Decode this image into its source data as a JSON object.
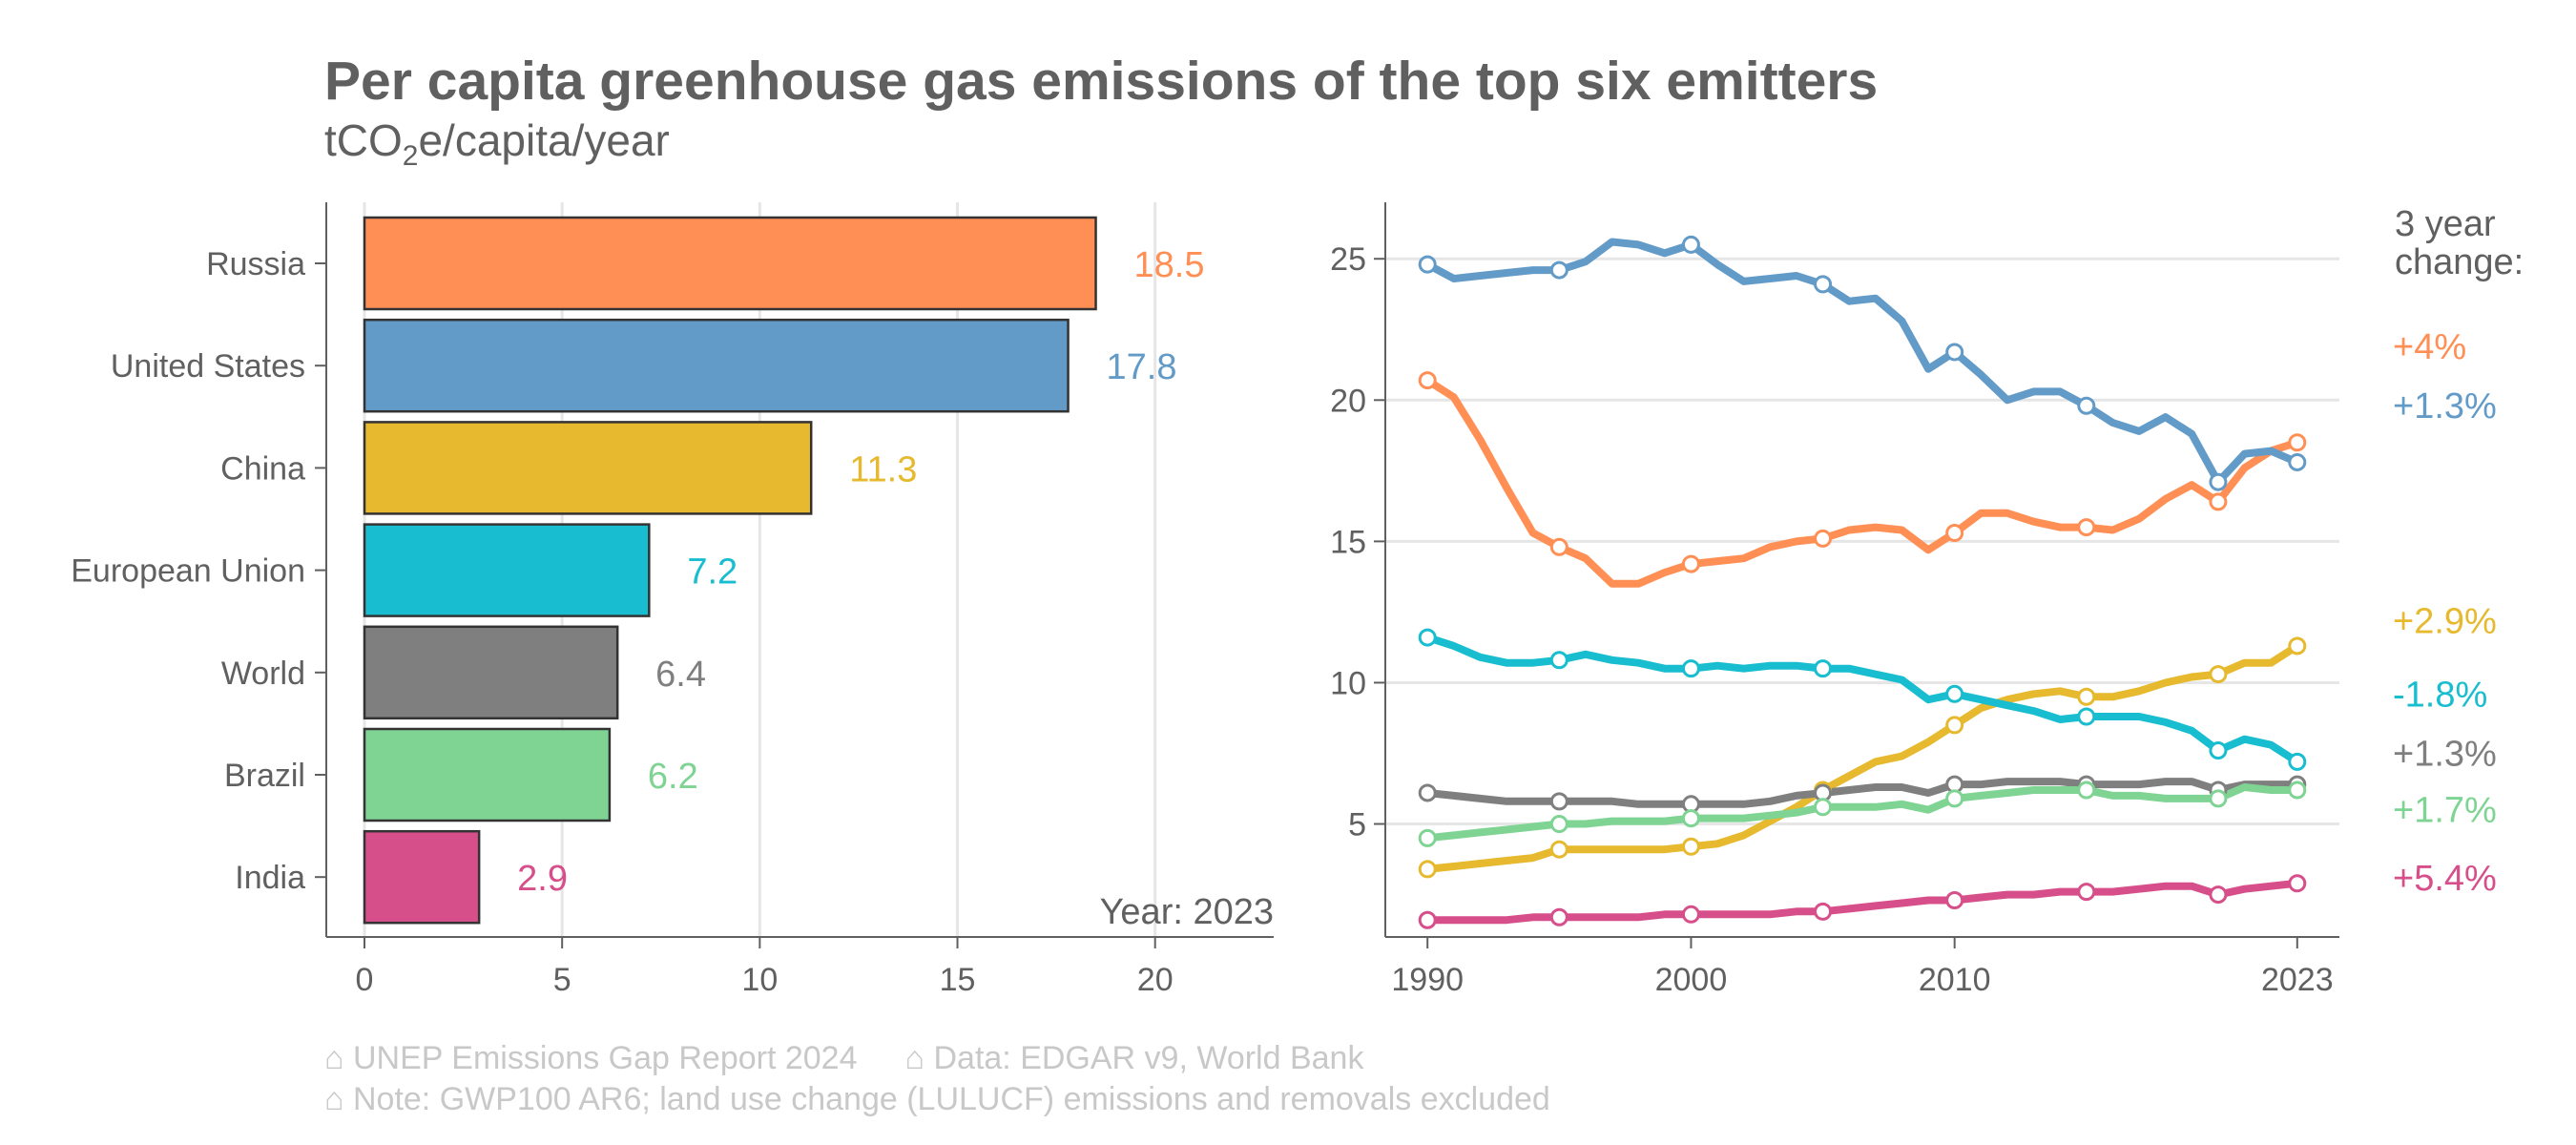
{
  "title": "Per capita greenhouse gas emissions of the top six emitters",
  "subtitle": {
    "prefix": "tCO",
    "sub": "2",
    "suffix": "e/capita/year"
  },
  "footer": {
    "source": "⌂ UNEP Emissions Gap Report 2024",
    "data": "⌂ Data: EDGAR v9, World Bank",
    "note": "⌂ Note: GWP100 AR6; land use change (LULUCF) emissions and removals excluded"
  },
  "colors": {
    "Russia": "#ff8f55",
    "United States": "#639bc8",
    "China": "#e6b92e",
    "European Union": "#19bdd0",
    "World": "#7f7f7f",
    "Brazil": "#7fd494",
    "India": "#d74f8a",
    "axis": "#606060",
    "grid": "#e6e6e6"
  },
  "chart_data": [
    {
      "type": "bar",
      "orientation": "horizontal",
      "categories": [
        "Russia",
        "United States",
        "China",
        "European Union",
        "World",
        "Brazil",
        "India"
      ],
      "values": [
        18.5,
        17.8,
        11.3,
        7.2,
        6.4,
        6.2,
        2.9
      ],
      "value_labels": [
        "18.5",
        "17.8",
        "11.3",
        "7.2",
        "6.4",
        "6.2",
        "2.9"
      ],
      "xlim": [
        0,
        23
      ],
      "xticks": [
        0,
        5,
        10,
        15,
        20
      ],
      "xtick_labels": [
        "0",
        "5",
        "10",
        "15",
        "20"
      ],
      "annotation": "Year: 2023"
    },
    {
      "type": "line",
      "x": [
        1990,
        1991,
        1992,
        1993,
        1994,
        1995,
        1996,
        1997,
        1998,
        1999,
        2000,
        2001,
        2002,
        2003,
        2004,
        2005,
        2006,
        2007,
        2008,
        2009,
        2010,
        2011,
        2012,
        2013,
        2014,
        2015,
        2016,
        2017,
        2018,
        2019,
        2020,
        2021,
        2022,
        2023
      ],
      "xlim": [
        1988.4,
        2024.6
      ],
      "ylim": [
        1.0,
        27.0
      ],
      "xticks": [
        1990,
        2000,
        2010,
        2023
      ],
      "xtick_labels": [
        "1990",
        "2000",
        "2010",
        "2023"
      ],
      "yticks": [
        5,
        10,
        15,
        20,
        25
      ],
      "ytick_labels": [
        "5",
        "10",
        "15",
        "20",
        "25"
      ],
      "marker_years": [
        1990,
        1995,
        2000,
        2005,
        2010,
        2015,
        2020,
        2023
      ],
      "legend_title": [
        "3 year",
        "change:"
      ],
      "series": [
        {
          "name": "Russia",
          "change": "+4%",
          "values": [
            20.7,
            20.1,
            18.6,
            16.9,
            15.3,
            14.8,
            14.4,
            13.5,
            13.5,
            13.9,
            14.2,
            14.3,
            14.4,
            14.8,
            15.0,
            15.1,
            15.4,
            15.5,
            15.4,
            14.7,
            15.3,
            16.0,
            16.0,
            15.7,
            15.5,
            15.5,
            15.4,
            15.8,
            16.5,
            17.0,
            16.4,
            17.6,
            18.2,
            18.5
          ],
          "label_y": 21.9
        },
        {
          "name": "United States",
          "change": "+1.3%",
          "values": [
            24.8,
            24.3,
            24.4,
            24.5,
            24.6,
            24.6,
            24.9,
            25.6,
            25.5,
            25.2,
            25.5,
            24.8,
            24.2,
            24.3,
            24.4,
            24.1,
            23.5,
            23.6,
            22.8,
            21.1,
            21.7,
            20.9,
            20.0,
            20.3,
            20.3,
            19.8,
            19.2,
            18.9,
            19.4,
            18.8,
            17.1,
            18.1,
            18.2,
            17.8
          ],
          "label_y": 19.8
        },
        {
          "name": "China",
          "change": "+2.9%",
          "values": [
            3.4,
            3.5,
            3.6,
            3.7,
            3.8,
            4.1,
            4.1,
            4.1,
            4.1,
            4.1,
            4.2,
            4.3,
            4.6,
            5.1,
            5.6,
            6.2,
            6.7,
            7.2,
            7.4,
            7.9,
            8.5,
            9.1,
            9.4,
            9.6,
            9.7,
            9.5,
            9.5,
            9.7,
            10.0,
            10.2,
            10.3,
            10.7,
            10.7,
            11.3
          ],
          "label_y": 12.2
        },
        {
          "name": "European Union",
          "change": "-1.8%",
          "values": [
            11.6,
            11.3,
            10.9,
            10.7,
            10.7,
            10.8,
            11.0,
            10.8,
            10.7,
            10.5,
            10.5,
            10.6,
            10.5,
            10.6,
            10.6,
            10.5,
            10.5,
            10.3,
            10.1,
            9.4,
            9.6,
            9.4,
            9.2,
            9.0,
            8.7,
            8.8,
            8.8,
            8.8,
            8.6,
            8.3,
            7.6,
            8.0,
            7.8,
            7.2
          ],
          "label_y": 9.6
        },
        {
          "name": "World",
          "change": "+1.3%",
          "values": [
            6.1,
            6.0,
            5.9,
            5.8,
            5.8,
            5.8,
            5.8,
            5.8,
            5.7,
            5.7,
            5.7,
            5.7,
            5.7,
            5.8,
            6.0,
            6.1,
            6.2,
            6.3,
            6.3,
            6.1,
            6.4,
            6.4,
            6.5,
            6.5,
            6.5,
            6.4,
            6.4,
            6.4,
            6.5,
            6.5,
            6.2,
            6.4,
            6.4,
            6.4
          ],
          "label_y": 7.5
        },
        {
          "name": "Brazil",
          "change": "+1.7%",
          "values": [
            4.5,
            4.6,
            4.7,
            4.8,
            4.9,
            5.0,
            5.0,
            5.1,
            5.1,
            5.1,
            5.2,
            5.2,
            5.2,
            5.3,
            5.4,
            5.6,
            5.6,
            5.6,
            5.7,
            5.5,
            5.9,
            6.0,
            6.1,
            6.2,
            6.2,
            6.2,
            6.0,
            6.0,
            5.9,
            5.9,
            5.9,
            6.3,
            6.2,
            6.2
          ],
          "label_y": 5.5
        },
        {
          "name": "India",
          "change": "+5.4%",
          "values": [
            1.6,
            1.6,
            1.6,
            1.6,
            1.7,
            1.7,
            1.7,
            1.7,
            1.7,
            1.8,
            1.8,
            1.8,
            1.8,
            1.8,
            1.9,
            1.9,
            2.0,
            2.1,
            2.2,
            2.3,
            2.3,
            2.4,
            2.5,
            2.5,
            2.6,
            2.6,
            2.6,
            2.7,
            2.8,
            2.8,
            2.5,
            2.7,
            2.8,
            2.9
          ],
          "label_y": 3.1
        }
      ]
    }
  ]
}
